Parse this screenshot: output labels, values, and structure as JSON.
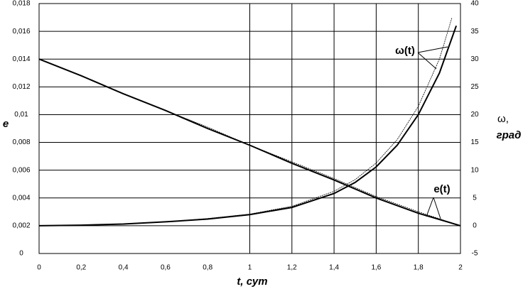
{
  "chart_data": {
    "type": "line",
    "xlabel": "t, сут",
    "ylabel": "e",
    "y2label": [
      "ω,",
      "град"
    ],
    "xlim": [
      0,
      2
    ],
    "xticks": [
      0,
      {
        "value": 0.2,
        "label": "0,2"
      },
      {
        "value": 0.4,
        "label": "0,4"
      },
      {
        "value": 0.6,
        "label": "0,6"
      },
      {
        "value": 0.8,
        "label": "0,8"
      },
      1,
      {
        "value": 1.2,
        "label": "1,2"
      },
      {
        "value": 1.4,
        "label": "1,4"
      },
      {
        "value": 1.6,
        "label": "1,6"
      },
      {
        "value": 1.8,
        "label": "1,8"
      },
      2
    ],
    "ylim": [
      0,
      0.018
    ],
    "yticks": [
      0,
      {
        "value": 0.002,
        "label": "0,002"
      },
      {
        "value": 0.004,
        "label": "0,004"
      },
      {
        "value": 0.006,
        "label": "0,006"
      },
      {
        "value": 0.008,
        "label": "0,008"
      },
      {
        "value": 0.01,
        "label": "0,01"
      },
      {
        "value": 0.012,
        "label": "0,012"
      },
      {
        "value": 0.014,
        "label": "0,014"
      },
      {
        "value": 0.016,
        "label": "0,016"
      },
      {
        "value": 0.018,
        "label": "0,018"
      }
    ],
    "y2lim": [
      -5,
      40
    ],
    "y2ticks": [
      -5,
      0,
      5,
      10,
      15,
      20,
      25,
      30,
      35,
      40
    ],
    "grid": true,
    "series": [
      {
        "name": "e(t)",
        "color": "#000",
        "x": [
          0,
          0.2,
          0.4,
          0.6,
          0.8,
          1,
          1.2,
          1.4,
          1.6,
          1.8,
          2
        ],
        "values": [
          0.014,
          0.0128,
          0.0115,
          0.0103,
          0.009,
          0.0078,
          0.0065,
          0.0053,
          0.004,
          0.0029,
          0.002
        ]
      },
      {
        "color": "#000",
        "x": [
          0,
          0.2,
          0.4,
          0.6,
          0.8,
          1,
          1.2,
          1.4,
          1.6,
          1.8,
          2
        ],
        "values": [
          0.014,
          0.0128,
          0.0115,
          0.0103,
          0.0091,
          0.0078,
          0.0066,
          0.0054,
          0.0041,
          0.003,
          0.002
        ]
      },
      {
        "name": "ω(t)",
        "color": "#000",
        "axis": "y2",
        "x": [
          0,
          0.2,
          0.4,
          0.6,
          0.8,
          1,
          1.2,
          1.4,
          1.5,
          1.6,
          1.7,
          1.8,
          1.9,
          1.98
        ],
        "values": [
          0,
          0.1,
          0.3,
          0.7,
          1.2,
          2,
          3.3,
          5.8,
          7.8,
          10.6,
          14.5,
          20,
          27.5,
          36
        ]
      },
      {
        "color": "#000",
        "axis": "y2",
        "x": [
          0,
          0.2,
          0.4,
          0.6,
          0.8,
          1,
          1.2,
          1.4,
          1.5,
          1.6,
          1.7,
          1.8,
          1.9,
          1.96
        ],
        "values": [
          0,
          0.1,
          0.3,
          0.7,
          1.3,
          2.1,
          3.5,
          6.2,
          8.3,
          11.3,
          15.5,
          21.5,
          30,
          37.5
        ]
      }
    ]
  }
}
